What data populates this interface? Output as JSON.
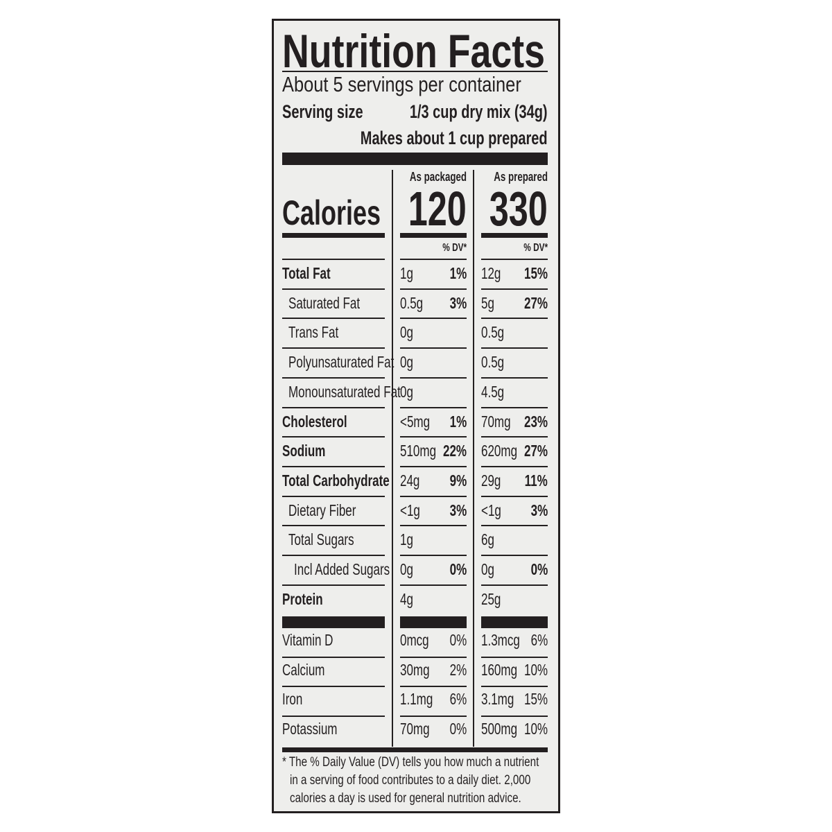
{
  "title": "Nutrition Facts",
  "servings_per_container": "About 5 servings per container",
  "serving_size_label": "Serving size",
  "serving_size_value": "1/3 cup dry mix (34g)",
  "makes": "Makes about 1 cup prepared",
  "columns": [
    {
      "header": "As packaged",
      "calories": "120",
      "dv_header": "% DV*"
    },
    {
      "header": "As prepared",
      "calories": "330",
      "dv_header": "% DV*"
    }
  ],
  "calories_label": "Calories",
  "nutrients": [
    {
      "label": "Total Fat",
      "bold": true,
      "indent": 0,
      "a": "1g",
      "adv": "1%",
      "b": "12g",
      "bdv": "15%"
    },
    {
      "label": "Saturated Fat",
      "bold": false,
      "indent": 1,
      "a": "0.5g",
      "adv": "3%",
      "b": "5g",
      "bdv": "27%"
    },
    {
      "label": "Trans Fat",
      "bold": false,
      "indent": 1,
      "a": "0g",
      "adv": "",
      "b": "0.5g",
      "bdv": ""
    },
    {
      "label": "Polyunsaturated Fat",
      "bold": false,
      "indent": 1,
      "a": "0g",
      "adv": "",
      "b": "0.5g",
      "bdv": ""
    },
    {
      "label": "Monounsaturated Fat",
      "bold": false,
      "indent": 1,
      "a": "0g",
      "adv": "",
      "b": "4.5g",
      "bdv": ""
    },
    {
      "label": "Cholesterol",
      "bold": true,
      "indent": 0,
      "a": "<5mg",
      "adv": "1%",
      "b": "70mg",
      "bdv": "23%"
    },
    {
      "label": "Sodium",
      "bold": true,
      "indent": 0,
      "a": "510mg",
      "adv": "22%",
      "b": "620mg",
      "bdv": "27%"
    },
    {
      "label": "Total Carbohydrate",
      "bold": true,
      "indent": 0,
      "a": "24g",
      "adv": "9%",
      "b": "29g",
      "bdv": "11%"
    },
    {
      "label": "Dietary Fiber",
      "bold": false,
      "indent": 1,
      "a": "<1g",
      "adv": "3%",
      "b": "<1g",
      "bdv": "3%"
    },
    {
      "label": "Total Sugars",
      "bold": false,
      "indent": 1,
      "a": "1g",
      "adv": "",
      "b": "6g",
      "bdv": ""
    },
    {
      "label": "Incl Added Sugars",
      "bold": false,
      "indent": 2,
      "a": "0g",
      "adv": "0%",
      "b": "0g",
      "bdv": "0%"
    },
    {
      "label": "Protein",
      "bold": true,
      "indent": 0,
      "a": "4g",
      "adv": "",
      "b": "25g",
      "bdv": ""
    }
  ],
  "vitamins": [
    {
      "label": "Vitamin D",
      "a": "0mcg",
      "adv": "0%",
      "b": "1.3mcg",
      "bdv": "6%"
    },
    {
      "label": "Calcium",
      "a": "30mg",
      "adv": "2%",
      "b": "160mg",
      "bdv": "10%"
    },
    {
      "label": "Iron",
      "a": "1.1mg",
      "adv": "6%",
      "b": "3.1mg",
      "bdv": "15%"
    },
    {
      "label": "Potassium",
      "a": "70mg",
      "adv": "0%",
      "b": "500mg",
      "bdv": "10%"
    }
  ],
  "footnote": [
    "* The % Daily Value (DV) tells you how much a nutrient",
    "in a serving of food contributes to a daily diet. 2,000",
    "calories a day is used for general nutrition advice."
  ]
}
